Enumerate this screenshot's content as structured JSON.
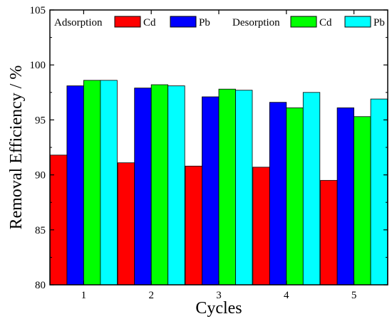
{
  "chart_data": {
    "type": "bar",
    "xlabel": "Cycles",
    "ylabel": "Removal Efficiency / %",
    "ylim": [
      80,
      105
    ],
    "yticks": [
      80,
      85,
      90,
      95,
      100,
      105
    ],
    "categories": [
      "1",
      "2",
      "3",
      "4",
      "5"
    ],
    "grid": false,
    "legend_position": "top",
    "legend_groups": [
      {
        "label": "Adsorption",
        "series_indices": [
          0,
          1
        ]
      },
      {
        "label": "Desorption",
        "series_indices": [
          2,
          3
        ]
      }
    ],
    "series": [
      {
        "name": "Cd",
        "group": "Adsorption",
        "color": "#ff0000",
        "values": [
          91.8,
          91.1,
          90.8,
          90.7,
          89.5
        ]
      },
      {
        "name": "Pb",
        "group": "Adsorption",
        "color": "#0000ff",
        "values": [
          98.1,
          97.9,
          97.1,
          96.6,
          96.1
        ]
      },
      {
        "name": "Cd",
        "group": "Desorption",
        "color": "#00ff00",
        "values": [
          98.6,
          98.2,
          97.8,
          96.1,
          95.3
        ]
      },
      {
        "name": "Pb",
        "group": "Desorption",
        "color": "#00ffff",
        "values": [
          98.6,
          98.1,
          97.7,
          97.5,
          96.9
        ]
      }
    ]
  }
}
